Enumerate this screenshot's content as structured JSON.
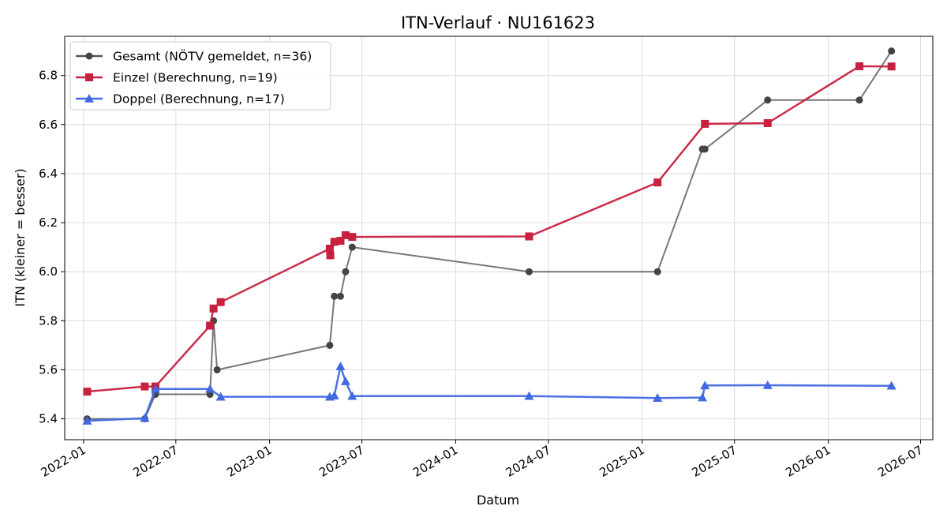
{
  "chart_data": {
    "type": "line",
    "title": "ITN-Verlauf · NU161623",
    "xlabel": "Datum",
    "ylabel": "ITN  (kleiner = besser)",
    "x_type": "date",
    "xlim": [
      "2021-11-25",
      "2026-07-25"
    ],
    "ylim": [
      5.315,
      6.96
    ],
    "x_ticks": [
      "2022-01",
      "2022-07",
      "2023-01",
      "2023-07",
      "2024-01",
      "2024-07",
      "2025-01",
      "2025-07",
      "2026-01",
      "2026-07"
    ],
    "y_ticks": [
      "5.4",
      "5.6",
      "5.8",
      "6.0",
      "6.2",
      "6.4",
      "6.6",
      "6.8"
    ],
    "grid": true,
    "legend_position": "top-left",
    "series": [
      {
        "name": "Gesamt (NÖTV gemeldet, n=36)",
        "color": "#555555",
        "marker_color": "#444444",
        "marker": "circle",
        "points": [
          {
            "x": "2022-01-08",
            "y": 5.4
          },
          {
            "x": "2022-05-01",
            "y": 5.4
          },
          {
            "x": "2022-05-22",
            "y": 5.5
          },
          {
            "x": "2022-09-06",
            "y": 5.5
          },
          {
            "x": "2022-09-13",
            "y": 5.8
          },
          {
            "x": "2022-09-20",
            "y": 5.6
          },
          {
            "x": "2023-04-29",
            "y": 5.7
          },
          {
            "x": "2023-05-08",
            "y": 5.9
          },
          {
            "x": "2023-05-20",
            "y": 5.9
          },
          {
            "x": "2023-05-30",
            "y": 6.0
          },
          {
            "x": "2023-06-12",
            "y": 6.1
          },
          {
            "x": "2024-05-24",
            "y": 6.0
          },
          {
            "x": "2025-01-31",
            "y": 6.0
          },
          {
            "x": "2025-04-29",
            "y": 6.5
          },
          {
            "x": "2025-05-04",
            "y": 6.5
          },
          {
            "x": "2025-09-04",
            "y": 6.7
          },
          {
            "x": "2026-03-03",
            "y": 6.7
          },
          {
            "x": "2026-05-05",
            "y": 6.9
          }
        ]
      },
      {
        "name": "Einzel (Berechnung, n=19)",
        "color": "#c8203f",
        "marker": "square",
        "points": [
          {
            "x": "2022-01-08",
            "y": 5.511
          },
          {
            "x": "2022-05-01",
            "y": 5.532
          },
          {
            "x": "2022-05-22",
            "y": 5.532
          },
          {
            "x": "2022-09-06",
            "y": 5.78
          },
          {
            "x": "2022-09-13",
            "y": 5.85
          },
          {
            "x": "2022-09-27",
            "y": 5.876
          },
          {
            "x": "2023-04-29",
            "y": 6.094
          },
          {
            "x": "2023-04-30",
            "y": 6.067
          },
          {
            "x": "2023-05-08",
            "y": 6.122
          },
          {
            "x": "2023-05-20",
            "y": 6.126
          },
          {
            "x": "2023-05-30",
            "y": 6.149
          },
          {
            "x": "2023-06-12",
            "y": 6.142
          },
          {
            "x": "2024-05-24",
            "y": 6.144
          },
          {
            "x": "2025-01-31",
            "y": 6.364
          },
          {
            "x": "2025-05-04",
            "y": 6.603
          },
          {
            "x": "2025-09-04",
            "y": 6.606
          },
          {
            "x": "2026-03-03",
            "y": 6.838
          },
          {
            "x": "2026-05-05",
            "y": 6.837
          }
        ]
      },
      {
        "name": "Doppel (Berechnung, n=17)",
        "color": "#4169e1",
        "marker": "triangle",
        "points": [
          {
            "x": "2022-01-08",
            "y": 5.392
          },
          {
            "x": "2022-05-01",
            "y": 5.403
          },
          {
            "x": "2022-05-22",
            "y": 5.522
          },
          {
            "x": "2022-09-06",
            "y": 5.522
          },
          {
            "x": "2022-09-27",
            "y": 5.49
          },
          {
            "x": "2023-04-29",
            "y": 5.49
          },
          {
            "x": "2023-05-08",
            "y": 5.495
          },
          {
            "x": "2023-05-20",
            "y": 5.614
          },
          {
            "x": "2023-05-30",
            "y": 5.553
          },
          {
            "x": "2023-06-12",
            "y": 5.493
          },
          {
            "x": "2024-05-24",
            "y": 5.493
          },
          {
            "x": "2025-01-31",
            "y": 5.485
          },
          {
            "x": "2025-04-29",
            "y": 5.487
          },
          {
            "x": "2025-05-04",
            "y": 5.536
          },
          {
            "x": "2025-09-04",
            "y": 5.537
          },
          {
            "x": "2026-05-05",
            "y": 5.535
          }
        ]
      }
    ]
  }
}
